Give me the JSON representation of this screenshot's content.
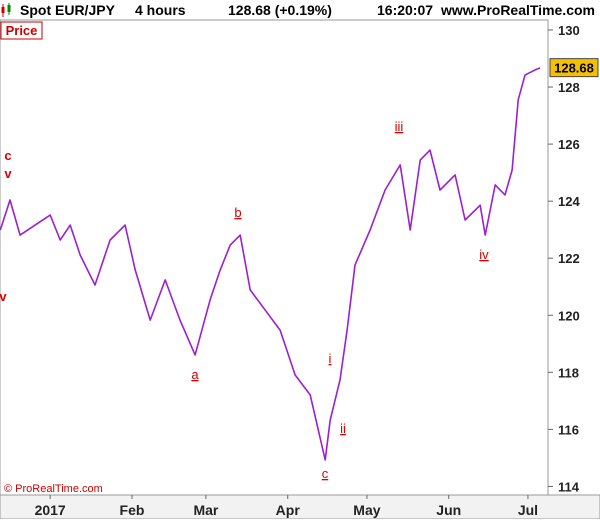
{
  "chart_data": {
    "type": "line",
    "symbol": "Spot EUR/JPY",
    "timeframe": "4 hours",
    "quote": "128.68 (+0.19%)",
    "time": "16:20:07",
    "site": "www.ProRealTime.com",
    "panel_label": "Price",
    "copyright": "© ProRealTime.com",
    "last_price": 128.68,
    "color": "#9c1fd0",
    "x": [
      -18.9,
      -15.2,
      -11.4,
      -5.7,
      0,
      3.8,
      7.6,
      11.4,
      17.0,
      22.7,
      28.4,
      32.2,
      37.9,
      43.6,
      49.2,
      54.9,
      60.6,
      64.4,
      68.2,
      72.0,
      75.8,
      81.4,
      87.1,
      92.8,
      98.5,
      104.2,
      106.1,
      109.8,
      112.5,
      115.5,
      121.2,
      126.9,
      132.6,
      136.4,
      140.2,
      143.9,
      147.7,
      153.4,
      157.2,
      162.9,
      164.8,
      168.6,
      172.3,
      175.0,
      177.3,
      179.9,
      183.7,
      185.6
    ],
    "values": [
      122.99,
      124.04,
      122.81,
      123.16,
      123.51,
      122.64,
      123.16,
      122.11,
      121.06,
      122.64,
      123.16,
      121.59,
      119.83,
      121.24,
      119.83,
      118.61,
      120.54,
      121.59,
      122.46,
      122.81,
      120.89,
      120.19,
      119.48,
      117.91,
      117.21,
      114.93,
      116.33,
      117.73,
      119.48,
      121.76,
      122.99,
      124.39,
      125.27,
      122.99,
      125.44,
      125.79,
      124.39,
      124.92,
      123.34,
      123.86,
      122.81,
      124.57,
      124.22,
      125.09,
      127.55,
      128.42,
      128.6,
      128.67
    ],
    "xlim": [
      -19,
      188.6
    ],
    "xticks": [
      {
        "value": 0,
        "label": "2017"
      },
      {
        "value": 31,
        "label": "Feb"
      },
      {
        "value": 59,
        "label": "Mar"
      },
      {
        "value": 90,
        "label": "Apr"
      },
      {
        "value": 120,
        "label": "May"
      },
      {
        "value": 151,
        "label": "Jun"
      },
      {
        "value": 181,
        "label": "Jul"
      }
    ],
    "ylim": [
      113.7,
      130.35
    ],
    "yticks": [
      114,
      116,
      118,
      120,
      122,
      124,
      126,
      128,
      130
    ],
    "annotations": [
      "c",
      "v",
      "v",
      "a",
      "b",
      "c",
      "i",
      "ii",
      "iii",
      "iv"
    ]
  }
}
